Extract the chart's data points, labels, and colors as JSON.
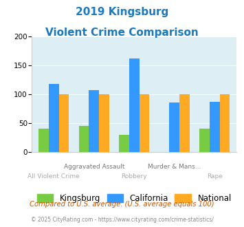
{
  "title_line1": "2019 Kingsburg",
  "title_line2": "Violent Crime Comparison",
  "title_color": "#1a7abf",
  "kingsburg": [
    40,
    45,
    30,
    0,
    40
  ],
  "california": [
    118,
    107,
    162,
    86,
    87
  ],
  "national": [
    100,
    100,
    100,
    100,
    100
  ],
  "kingsburg_color": "#77cc44",
  "california_color": "#3399ff",
  "national_color": "#ffaa22",
  "ylim": [
    0,
    200
  ],
  "yticks": [
    0,
    50,
    100,
    150,
    200
  ],
  "plot_bg_color": "#ddeef5",
  "fig_bg_color": "#ffffff",
  "legend_labels": [
    "Kingsburg",
    "California",
    "National"
  ],
  "footnote1": "Compared to U.S. average. (U.S. average equals 100)",
  "footnote2": "© 2025 CityRating.com - https://www.cityrating.com/crime-statistics/",
  "footnote1_color": "#cc5500",
  "footnote2_color": "#888888",
  "bar_width": 0.25,
  "label_line1": [
    "",
    "Aggravated Assault",
    "",
    "Murder & Mans...",
    ""
  ],
  "label_line2": [
    "All Violent Crime",
    "",
    "Robbery",
    "",
    "Rape"
  ],
  "label1_color": "#777777",
  "label2_color": "#aaaaaa"
}
